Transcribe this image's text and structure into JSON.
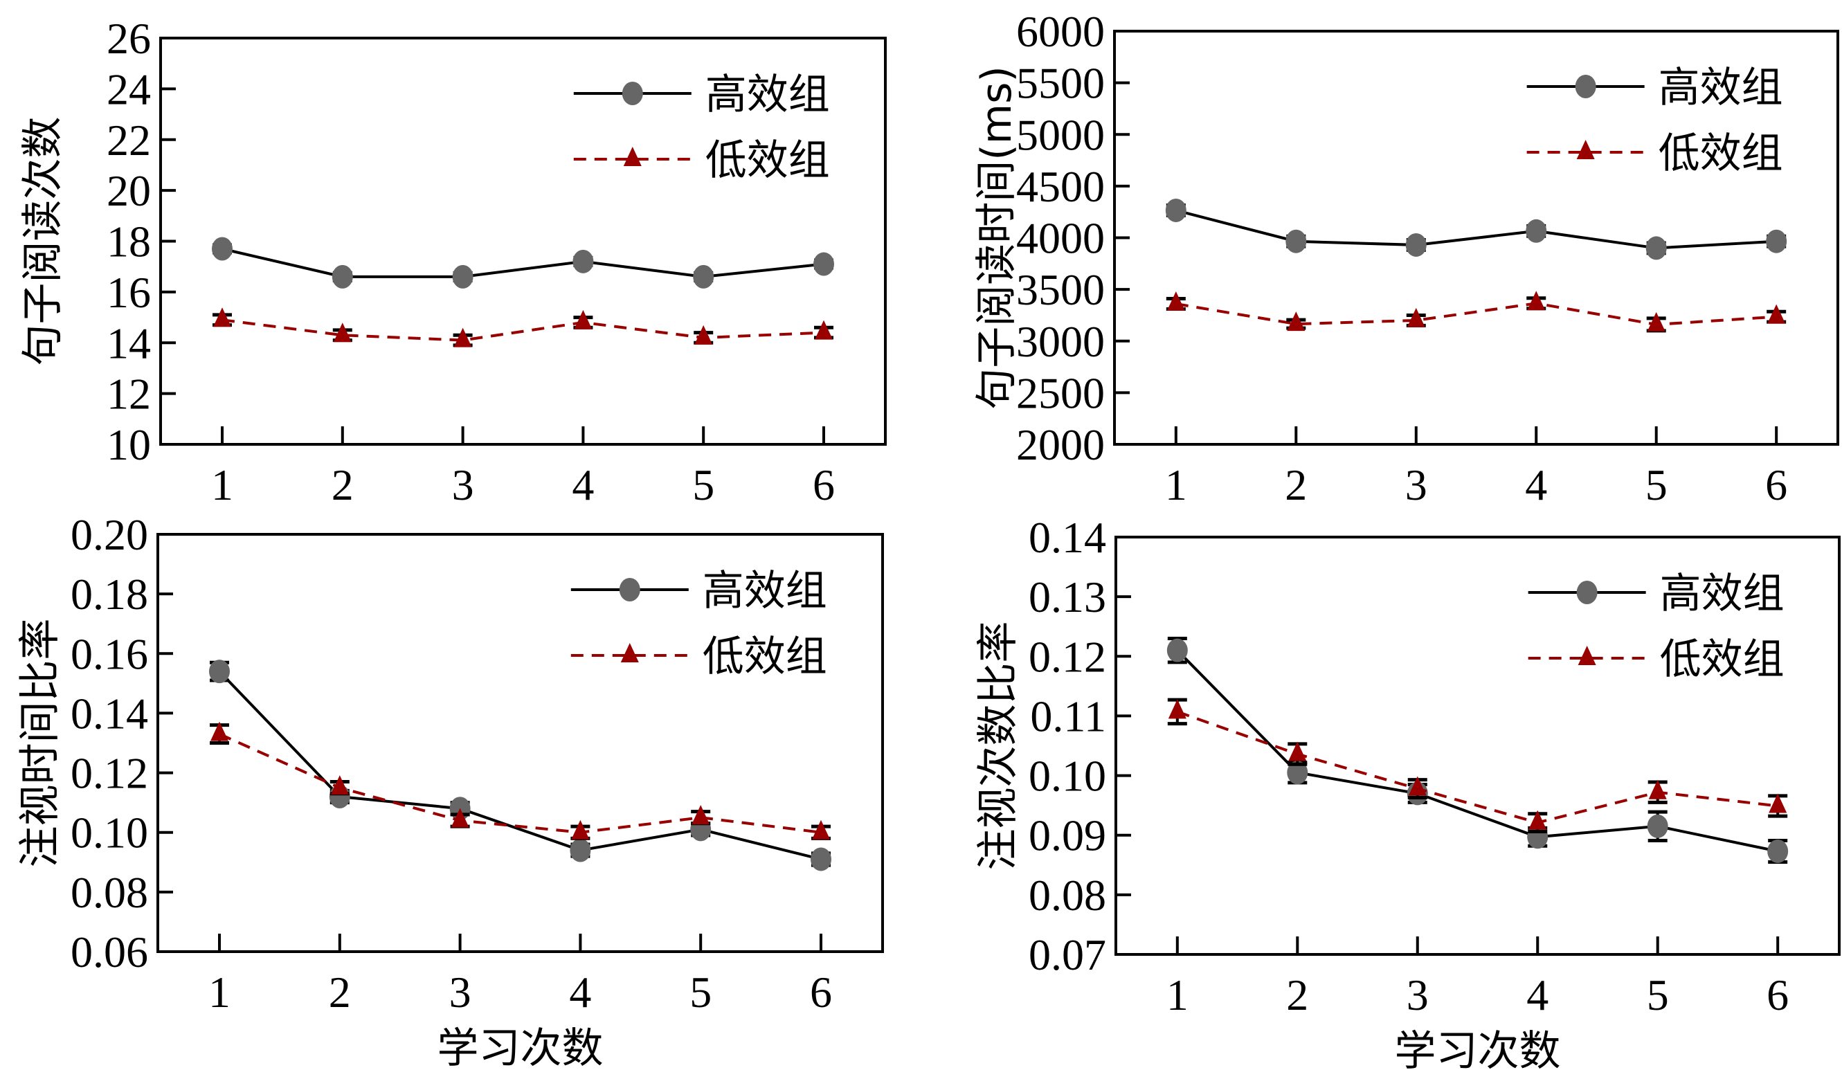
{
  "chart_data": [
    {
      "type": "line",
      "panel": "top-left",
      "title": "",
      "xlabel": "",
      "ylabel": "句子阅读次数",
      "x": [
        1,
        2,
        3,
        4,
        5,
        6
      ],
      "x_ticks": [
        "1",
        "2",
        "3",
        "4",
        "5",
        "6"
      ],
      "ylim": [
        10,
        26
      ],
      "y_ticks": [
        "10",
        "12",
        "14",
        "16",
        "18",
        "20",
        "22",
        "24",
        "26"
      ],
      "y_tick_values": [
        10,
        12,
        14,
        16,
        18,
        20,
        22,
        24,
        26
      ],
      "grid": false,
      "legend_position": "top-right",
      "series": [
        {
          "name": "高效组",
          "style": "solid",
          "marker": "circle",
          "color": "#666666",
          "line_color": "#000000",
          "values": [
            17.7,
            16.6,
            16.6,
            17.2,
            16.6,
            17.1
          ],
          "errors": [
            0.15,
            0.15,
            0.15,
            0.15,
            0.15,
            0.15
          ]
        },
        {
          "name": "低效组",
          "style": "dashed",
          "marker": "triangle",
          "color": "#990000",
          "line_color": "#990000",
          "values": [
            14.9,
            14.3,
            14.1,
            14.8,
            14.2,
            14.4
          ],
          "errors": [
            0.2,
            0.2,
            0.2,
            0.2,
            0.2,
            0.2
          ]
        }
      ]
    },
    {
      "type": "line",
      "panel": "top-right",
      "title": "",
      "xlabel": "",
      "ylabel": "句子阅读时间(ms)",
      "x": [
        1,
        2,
        3,
        4,
        5,
        6
      ],
      "x_ticks": [
        "1",
        "2",
        "3",
        "4",
        "5",
        "6"
      ],
      "ylim": [
        2000,
        6000
      ],
      "y_ticks": [
        "2000",
        "2500",
        "3000",
        "3500",
        "4000",
        "4500",
        "5000",
        "5500",
        "6000"
      ],
      "y_tick_values": [
        2000,
        2500,
        3000,
        3500,
        4000,
        4500,
        5000,
        5500,
        6000
      ],
      "grid": false,
      "legend_position": "top-right",
      "series": [
        {
          "name": "高效组",
          "style": "solid",
          "marker": "circle",
          "color": "#666666",
          "line_color": "#000000",
          "values": [
            4265,
            3965,
            3930,
            4065,
            3900,
            3965
          ],
          "errors": [
            50,
            50,
            50,
            50,
            50,
            50
          ]
        },
        {
          "name": "低效组",
          "style": "dashed",
          "marker": "triangle",
          "color": "#990000",
          "line_color": "#990000",
          "values": [
            3360,
            3165,
            3200,
            3365,
            3160,
            3235
          ],
          "errors": [
            50,
            40,
            50,
            50,
            60,
            50
          ]
        }
      ]
    },
    {
      "type": "line",
      "panel": "bottom-left",
      "title": "",
      "xlabel": "学习次数",
      "ylabel": "注视时间比率",
      "x": [
        1,
        2,
        3,
        4,
        5,
        6
      ],
      "x_ticks": [
        "1",
        "2",
        "3",
        "4",
        "5",
        "6"
      ],
      "ylim": [
        0.06,
        0.2
      ],
      "y_ticks": [
        "0.06",
        "0.08",
        "0.10",
        "0.12",
        "0.14",
        "0.16",
        "0.18",
        "0.20"
      ],
      "y_tick_values": [
        0.06,
        0.08,
        0.1,
        0.12,
        0.14,
        0.16,
        0.18,
        0.2
      ],
      "grid": false,
      "legend_position": "top-right",
      "series": [
        {
          "name": "高效组",
          "style": "solid",
          "marker": "circle",
          "color": "#666666",
          "line_color": "#000000",
          "values": [
            0.154,
            0.112,
            0.108,
            0.094,
            0.101,
            0.091
          ],
          "errors": [
            0.003,
            0.002,
            0.002,
            0.002,
            0.002,
            0.002
          ]
        },
        {
          "name": "低效组",
          "style": "dashed",
          "marker": "triangle",
          "color": "#990000",
          "line_color": "#990000",
          "values": [
            0.133,
            0.115,
            0.104,
            0.1,
            0.105,
            0.1
          ],
          "errors": [
            0.003,
            0.002,
            0.002,
            0.002,
            0.002,
            0.002
          ]
        }
      ]
    },
    {
      "type": "line",
      "panel": "bottom-right",
      "title": "",
      "xlabel": "学习次数",
      "ylabel": "注视次数比率",
      "x": [
        1,
        2,
        3,
        4,
        5,
        6
      ],
      "x_ticks": [
        "1",
        "2",
        "3",
        "4",
        "5",
        "6"
      ],
      "ylim": [
        0.07,
        0.14
      ],
      "y_ticks": [
        "0.07",
        "0.08",
        "0.09",
        "0.10",
        "0.11",
        "0.12",
        "0.13",
        "0.14"
      ],
      "y_tick_values": [
        0.07,
        0.08,
        0.09,
        0.1,
        0.11,
        0.12,
        0.13,
        0.14
      ],
      "grid": false,
      "legend_position": "top-right",
      "series": [
        {
          "name": "高效组",
          "style": "solid",
          "marker": "circle",
          "color": "#666666",
          "line_color": "#000000",
          "values": [
            0.121,
            0.1005,
            0.097,
            0.0897,
            0.0915,
            0.0873
          ],
          "errors": [
            0.002,
            0.0017,
            0.0015,
            0.0015,
            0.0024,
            0.0018
          ]
        },
        {
          "name": "低效组",
          "style": "dashed",
          "marker": "triangle",
          "color": "#990000",
          "line_color": "#990000",
          "values": [
            0.1107,
            0.1036,
            0.0978,
            0.0921,
            0.0972,
            0.0949
          ],
          "errors": [
            0.002,
            0.0017,
            0.0015,
            0.0015,
            0.0017,
            0.0017
          ]
        }
      ]
    }
  ]
}
